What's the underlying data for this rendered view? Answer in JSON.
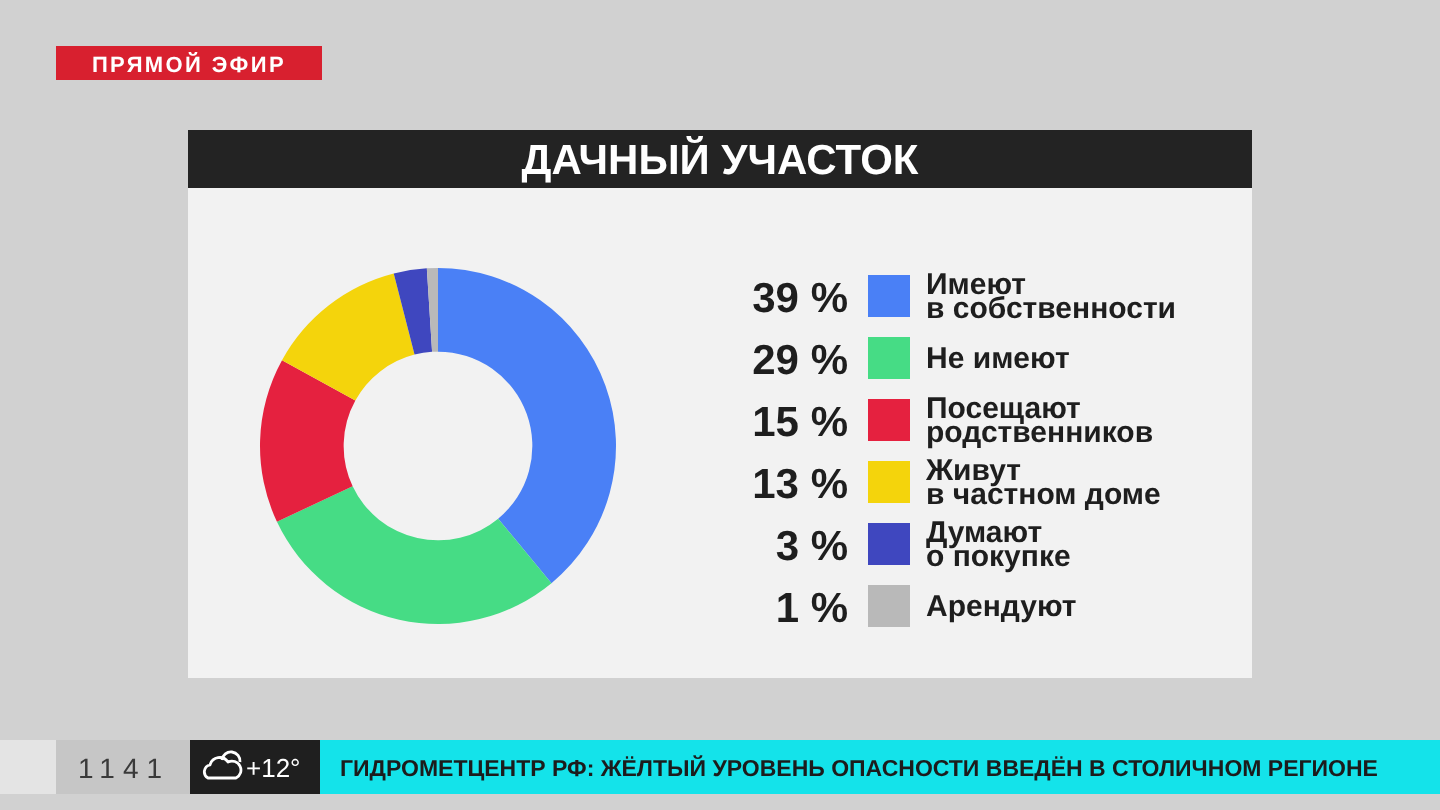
{
  "chart_data": {
    "type": "donut",
    "title": "ДАЧНЫЙ УЧАСТОК",
    "categories": [
      "Имеют в собственности",
      "Не имеют",
      "Посещают родственников",
      "Живут в частном доме",
      "Думают о покупке",
      "Арендуют"
    ],
    "values": [
      39,
      29,
      15,
      13,
      3,
      1
    ],
    "colors": [
      "#4a80f6",
      "#46dc85",
      "#e5213f",
      "#f4d40c",
      "#3f47bf",
      "#b9b9b9"
    ],
    "value_labels": [
      "39 %",
      "29 %",
      "15 %",
      "13 %",
      "3 %",
      "1 %"
    ],
    "legend": "right",
    "annotations": [
      "ПРЯМОЙ ЭФИР",
      "1141",
      "+12°",
      "ГИДРОМЕТЦЕНТР РФ: ЖЁЛТЫЙ УРОВЕНЬ ОПАСНОСТИ ВВЕДЁН В СТОЛИЧНОМ РЕГИОНЕ"
    ]
  }
}
